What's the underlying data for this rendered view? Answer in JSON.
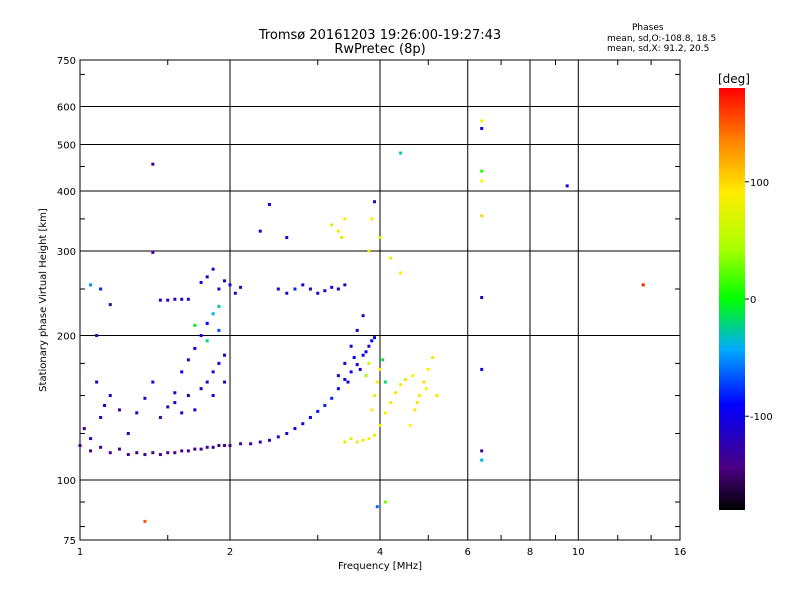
{
  "header": {
    "title_line1": "Tromsø 20161203 19:26:00-19:27:43",
    "title_line2": "RwPretec (8p)",
    "stats_title": "Phases",
    "stats_o": "mean, sd,O:-108.8, 18.5",
    "stats_x": "mean, sd,X:  91.2, 20.5"
  },
  "colorbar": {
    "unit": "[deg]",
    "ticks": [
      100,
      0,
      -100
    ],
    "range": [
      -180,
      180
    ]
  },
  "chart_data": {
    "type": "scatter",
    "title": "",
    "xlabel": "Frequency [MHz]",
    "ylabel": "Stationary phase Virtual Height [km]",
    "xscale": "log",
    "yscale": "log",
    "xlim": [
      1,
      16
    ],
    "ylim": [
      75,
      750
    ],
    "xticks": [
      1,
      2,
      4,
      6,
      8,
      10,
      16
    ],
    "yticks": [
      75,
      100,
      200,
      300,
      400,
      500,
      600,
      750
    ],
    "grid": true,
    "color_variable": "phase [deg]",
    "points": [
      [
        1.0,
        118,
        -140
      ],
      [
        1.05,
        115,
        -140
      ],
      [
        1.1,
        117,
        -135
      ],
      [
        1.15,
        114,
        -140
      ],
      [
        1.2,
        116,
        -138
      ],
      [
        1.25,
        113,
        -140
      ],
      [
        1.3,
        114,
        -140
      ],
      [
        1.35,
        113,
        -138
      ],
      [
        1.4,
        114,
        -140
      ],
      [
        1.45,
        113,
        -138
      ],
      [
        1.5,
        114,
        -140
      ],
      [
        1.55,
        114,
        -138
      ],
      [
        1.6,
        115,
        -140
      ],
      [
        1.65,
        115,
        -138
      ],
      [
        1.7,
        116,
        -140
      ],
      [
        1.75,
        116,
        -138
      ],
      [
        1.8,
        117,
        -140
      ],
      [
        1.85,
        117,
        -135
      ],
      [
        1.9,
        118,
        -138
      ],
      [
        1.95,
        118,
        -135
      ],
      [
        2.0,
        118,
        -138
      ],
      [
        2.1,
        119,
        -135
      ],
      [
        2.2,
        119,
        -130
      ],
      [
        2.3,
        120,
        -128
      ],
      [
        2.4,
        121,
        -125
      ],
      [
        2.5,
        123,
        -120
      ],
      [
        2.6,
        125,
        -115
      ],
      [
        2.7,
        128,
        -110
      ],
      [
        2.8,
        131,
        -100
      ],
      [
        2.9,
        135,
        -90
      ],
      [
        3.0,
        139,
        -85
      ],
      [
        3.1,
        143,
        -80
      ],
      [
        3.2,
        148,
        -80
      ],
      [
        3.3,
        155,
        -90
      ],
      [
        3.4,
        162,
        -95
      ],
      [
        3.5,
        168,
        -100
      ],
      [
        3.6,
        174,
        -110
      ],
      [
        3.7,
        182,
        -100
      ],
      [
        3.8,
        190,
        -110
      ],
      [
        3.9,
        198,
        -100
      ],
      [
        1.02,
        128,
        -130
      ],
      [
        1.05,
        122,
        -110
      ],
      [
        1.1,
        135,
        -120
      ],
      [
        1.12,
        143,
        -100
      ],
      [
        1.08,
        160,
        -100
      ],
      [
        1.15,
        150,
        -110
      ],
      [
        1.2,
        140,
        -130
      ],
      [
        1.25,
        125,
        -120
      ],
      [
        1.3,
        138,
        -110
      ],
      [
        1.35,
        148,
        -120
      ],
      [
        1.4,
        160,
        -110
      ],
      [
        1.45,
        135,
        -130
      ],
      [
        1.5,
        142,
        -120
      ],
      [
        1.55,
        152,
        -110
      ],
      [
        1.6,
        168,
        -100
      ],
      [
        1.65,
        178,
        -110
      ],
      [
        1.7,
        188,
        -100
      ],
      [
        1.75,
        200,
        -110
      ],
      [
        1.8,
        212,
        -90
      ],
      [
        1.85,
        222,
        -40
      ],
      [
        1.9,
        230,
        -30
      ],
      [
        1.8,
        195,
        -20
      ],
      [
        1.7,
        210,
        -10
      ],
      [
        1.9,
        205,
        -70
      ],
      [
        1.75,
        155,
        -110
      ],
      [
        1.8,
        160,
        -120
      ],
      [
        1.85,
        168,
        -110
      ],
      [
        1.9,
        175,
        -100
      ],
      [
        1.95,
        182,
        -110
      ],
      [
        1.65,
        150,
        -115
      ],
      [
        1.6,
        138,
        -110
      ],
      [
        1.55,
        145,
        -115
      ],
      [
        1.7,
        140,
        -105
      ],
      [
        1.85,
        150,
        -100
      ],
      [
        1.95,
        160,
        -110
      ],
      [
        1.45,
        237,
        -120
      ],
      [
        1.5,
        237,
        -115
      ],
      [
        1.55,
        238,
        -120
      ],
      [
        1.6,
        238,
        -110
      ],
      [
        1.65,
        238,
        -120
      ],
      [
        1.75,
        258,
        -110
      ],
      [
        1.8,
        265,
        -115
      ],
      [
        1.85,
        275,
        -110
      ],
      [
        1.9,
        250,
        -120
      ],
      [
        1.95,
        260,
        -115
      ],
      [
        2.0,
        255,
        -110
      ],
      [
        2.05,
        245,
        -120
      ],
      [
        2.1,
        252,
        -115
      ],
      [
        2.5,
        250,
        -110
      ],
      [
        2.6,
        245,
        -115
      ],
      [
        2.7,
        250,
        -80
      ],
      [
        2.8,
        255,
        -100
      ],
      [
        2.9,
        250,
        -110
      ],
      [
        3.0,
        245,
        -115
      ],
      [
        3.1,
        248,
        -100
      ],
      [
        3.2,
        252,
        -110
      ],
      [
        3.3,
        250,
        -105
      ],
      [
        3.4,
        255,
        -110
      ],
      [
        3.2,
        340,
        60
      ],
      [
        3.3,
        330,
        80
      ],
      [
        3.4,
        350,
        90
      ],
      [
        3.35,
        320,
        70
      ],
      [
        3.3,
        165,
        -110
      ],
      [
        3.4,
        175,
        -115
      ],
      [
        3.5,
        190,
        -110
      ],
      [
        3.6,
        205,
        -105
      ],
      [
        3.7,
        220,
        -110
      ],
      [
        3.55,
        180,
        -90
      ],
      [
        3.45,
        160,
        -100
      ],
      [
        3.65,
        170,
        -110
      ],
      [
        3.75,
        185,
        -100
      ],
      [
        3.85,
        195,
        -90
      ],
      [
        3.4,
        120,
        70
      ],
      [
        3.5,
        122,
        75
      ],
      [
        3.6,
        120,
        80
      ],
      [
        3.7,
        121,
        75
      ],
      [
        3.8,
        122,
        85
      ],
      [
        3.9,
        124,
        80
      ],
      [
        4.0,
        130,
        85
      ],
      [
        4.1,
        138,
        90
      ],
      [
        4.2,
        145,
        90
      ],
      [
        4.3,
        152,
        95
      ],
      [
        4.4,
        158,
        90
      ],
      [
        4.5,
        162,
        95
      ],
      [
        3.85,
        140,
        90
      ],
      [
        3.9,
        150,
        80
      ],
      [
        3.95,
        160,
        85
      ],
      [
        4.0,
        170,
        90
      ],
      [
        3.8,
        175,
        60
      ],
      [
        3.75,
        165,
        40
      ],
      [
        4.6,
        130,
        90
      ],
      [
        4.7,
        140,
        95
      ],
      [
        4.8,
        150,
        90
      ],
      [
        4.9,
        160,
        95
      ],
      [
        5.0,
        170,
        90
      ],
      [
        5.1,
        180,
        95
      ],
      [
        4.65,
        165,
        90
      ],
      [
        4.75,
        145,
        95
      ],
      [
        4.95,
        155,
        90
      ],
      [
        5.2,
        150,
        95
      ],
      [
        3.9,
        380,
        -120
      ],
      [
        3.85,
        350,
        90
      ],
      [
        4.0,
        320,
        60
      ],
      [
        4.2,
        290,
        80
      ],
      [
        4.4,
        270,
        90
      ],
      [
        3.8,
        300,
        75
      ],
      [
        4.1,
        160,
        -20
      ],
      [
        4.05,
        178,
        -10
      ],
      [
        3.95,
        88,
        -60
      ],
      [
        4.1,
        90,
        30
      ],
      [
        6.4,
        560,
        80
      ],
      [
        6.4,
        540,
        -100
      ],
      [
        6.4,
        440,
        10
      ],
      [
        6.4,
        420,
        90
      ],
      [
        6.4,
        355,
        100
      ],
      [
        6.4,
        240,
        -120
      ],
      [
        6.4,
        170,
        -100
      ],
      [
        6.4,
        115,
        -130
      ],
      [
        6.4,
        110,
        -40
      ],
      [
        9.5,
        410,
        -110
      ],
      [
        1.4,
        455,
        -130
      ],
      [
        1.4,
        298,
        -130
      ],
      [
        2.4,
        375,
        -110
      ],
      [
        2.3,
        330,
        -100
      ],
      [
        2.6,
        320,
        -110
      ],
      [
        4.4,
        480,
        -30
      ],
      [
        1.35,
        82,
        150
      ],
      [
        13.5,
        255,
        170
      ],
      [
        1.05,
        255,
        -50
      ],
      [
        1.1,
        250,
        -80
      ],
      [
        1.08,
        200,
        -120
      ],
      [
        1.15,
        232,
        -140
      ]
    ]
  }
}
